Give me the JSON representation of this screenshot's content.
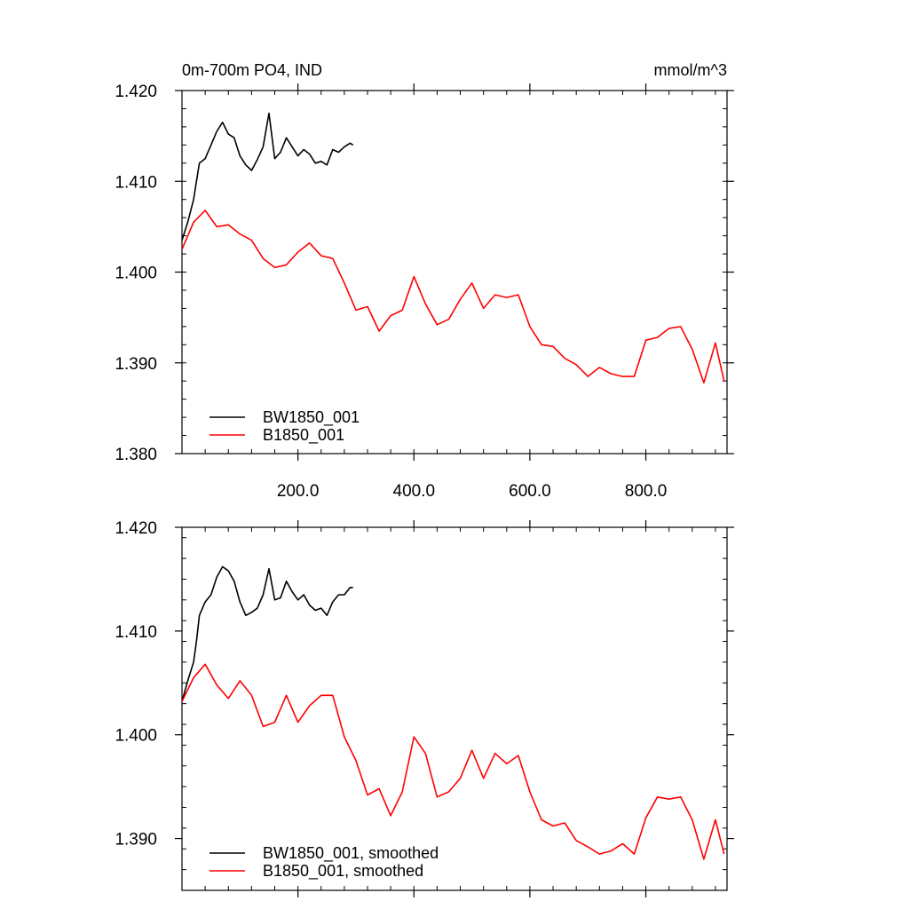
{
  "chart_data": [
    {
      "type": "line",
      "title": "0m-700m PO4, IND",
      "units": "mmol/m^3",
      "xlim": [
        0,
        940
      ],
      "ylim": [
        1.38,
        1.42
      ],
      "xticks": [
        200,
        400,
        600,
        800
      ],
      "xtick_labels": [
        "200.0",
        "400.0",
        "600.0",
        "800.0"
      ],
      "yticks": [
        1.38,
        1.39,
        1.4,
        1.41,
        1.42
      ],
      "ytick_labels": [
        "1.380",
        "1.390",
        "1.400",
        "1.410",
        "1.420"
      ],
      "legend_position": "bottom-left",
      "series": [
        {
          "name": "BW1850_001",
          "color": "#000000",
          "x": [
            0,
            10,
            20,
            25,
            30,
            40,
            50,
            60,
            70,
            80,
            90,
            100,
            110,
            120,
            130,
            140,
            150,
            160,
            170,
            180,
            190,
            200,
            210,
            220,
            230,
            240,
            250,
            260,
            270,
            280,
            290,
            295
          ],
          "y": [
            1.4035,
            1.4055,
            1.408,
            1.41,
            1.412,
            1.4125,
            1.414,
            1.4155,
            1.4165,
            1.4152,
            1.4148,
            1.4128,
            1.4118,
            1.4112,
            1.4124,
            1.4138,
            1.4175,
            1.4125,
            1.4132,
            1.4148,
            1.4138,
            1.4128,
            1.4135,
            1.413,
            1.412,
            1.4122,
            1.4118,
            1.4135,
            1.4132,
            1.4138,
            1.4142,
            1.414
          ]
        },
        {
          "name": "B1850_001",
          "color": "#ff0000",
          "x": [
            0,
            20,
            40,
            60,
            80,
            100,
            120,
            140,
            160,
            180,
            200,
            220,
            240,
            260,
            280,
            300,
            320,
            340,
            360,
            380,
            400,
            420,
            440,
            460,
            480,
            500,
            520,
            540,
            560,
            580,
            600,
            620,
            640,
            660,
            680,
            700,
            720,
            740,
            760,
            780,
            800,
            820,
            840,
            860,
            880,
            900,
            920,
            935
          ],
          "y": [
            1.4025,
            1.4055,
            1.4068,
            1.405,
            1.4052,
            1.4042,
            1.4035,
            1.4015,
            1.4005,
            1.4008,
            1.4022,
            1.4032,
            1.4018,
            1.4015,
            1.3988,
            1.3958,
            1.3962,
            1.3935,
            1.3952,
            1.3958,
            1.3995,
            1.3965,
            1.3942,
            1.3948,
            1.397,
            1.3988,
            1.396,
            1.3975,
            1.3972,
            1.3975,
            1.394,
            1.392,
            1.3918,
            1.3905,
            1.3898,
            1.3885,
            1.3895,
            1.3888,
            1.3885,
            1.3885,
            1.3925,
            1.3928,
            1.3938,
            1.394,
            1.3915,
            1.3878,
            1.3922,
            1.388
          ]
        }
      ]
    },
    {
      "type": "line",
      "xlim": [
        0,
        940
      ],
      "ylim": [
        1.385,
        1.42
      ],
      "yticks": [
        1.39,
        1.4,
        1.41,
        1.42
      ],
      "ytick_labels": [
        "1.390",
        "1.400",
        "1.410",
        "1.420"
      ],
      "legend_position": "bottom-left",
      "series": [
        {
          "name": "BW1850_001, smoothed",
          "color": "#000000",
          "x": [
            0,
            10,
            20,
            25,
            30,
            40,
            50,
            60,
            70,
            80,
            90,
            100,
            110,
            120,
            130,
            140,
            150,
            160,
            170,
            180,
            190,
            200,
            210,
            220,
            230,
            240,
            250,
            260,
            270,
            280,
            290,
            295
          ],
          "y": [
            1.4032,
            1.4052,
            1.407,
            1.409,
            1.4115,
            1.4128,
            1.4135,
            1.4152,
            1.4162,
            1.4158,
            1.4148,
            1.4128,
            1.4115,
            1.4118,
            1.4122,
            1.4135,
            1.416,
            1.413,
            1.4132,
            1.4148,
            1.4138,
            1.413,
            1.4135,
            1.4125,
            1.412,
            1.4122,
            1.4115,
            1.4128,
            1.4135,
            1.4135,
            1.4142,
            1.4142
          ]
        },
        {
          "name": "B1850_001, smoothed",
          "color": "#ff0000",
          "x": [
            0,
            20,
            40,
            60,
            80,
            100,
            120,
            140,
            160,
            180,
            200,
            220,
            240,
            260,
            280,
            300,
            320,
            340,
            360,
            380,
            400,
            420,
            440,
            460,
            480,
            500,
            520,
            540,
            560,
            580,
            600,
            620,
            640,
            660,
            680,
            700,
            720,
            740,
            760,
            780,
            800,
            820,
            840,
            860,
            880,
            900,
            920,
            935
          ],
          "y": [
            1.4032,
            1.4055,
            1.4068,
            1.4048,
            1.4035,
            1.4052,
            1.4038,
            1.4008,
            1.4012,
            1.4038,
            1.4012,
            1.4028,
            1.4038,
            1.4038,
            1.3998,
            1.3975,
            1.3942,
            1.3948,
            1.3922,
            1.3945,
            1.3998,
            1.3982,
            1.394,
            1.3945,
            1.3958,
            1.3985,
            1.3958,
            1.3982,
            1.3972,
            1.398,
            1.3945,
            1.3918,
            1.3912,
            1.3915,
            1.3898,
            1.3892,
            1.3885,
            1.3888,
            1.3895,
            1.3885,
            1.392,
            1.394,
            1.3938,
            1.394,
            1.3918,
            1.388,
            1.3918,
            1.3885
          ]
        }
      ]
    }
  ]
}
